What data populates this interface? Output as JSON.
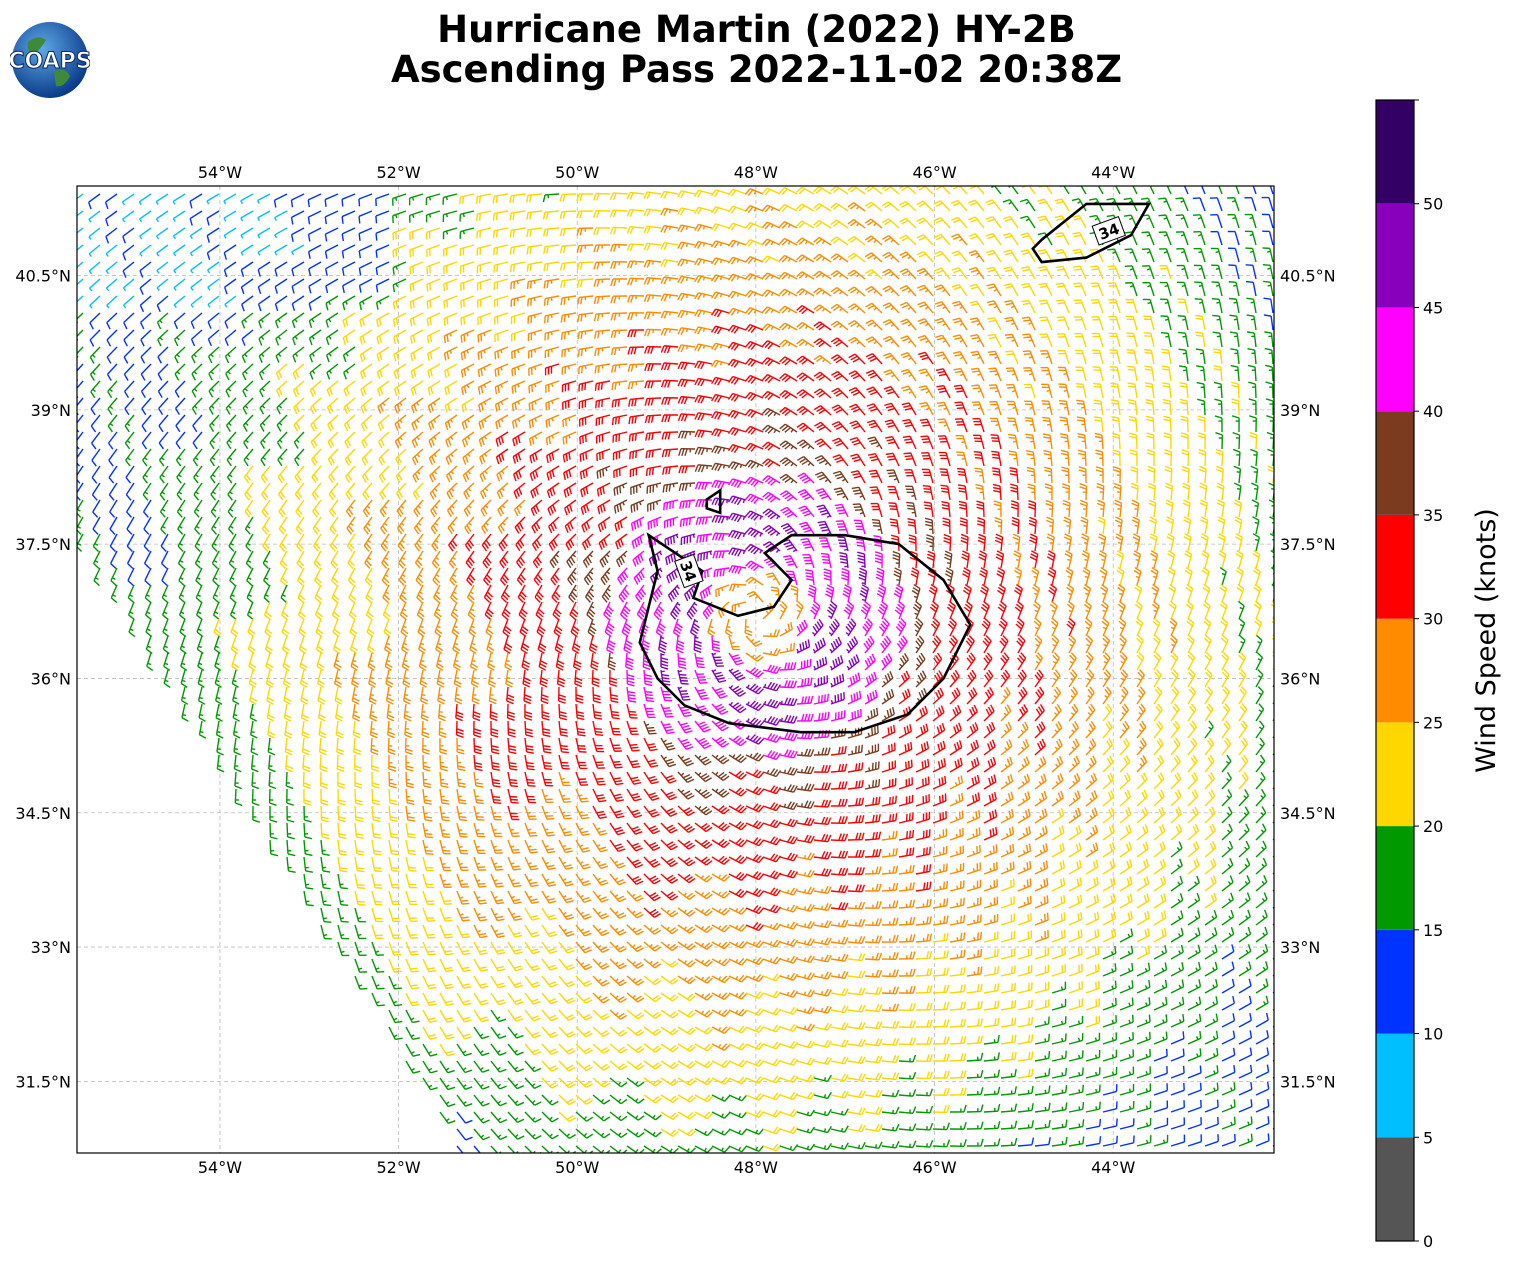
{
  "header": {
    "title_line1": "Hurricane Martin (2022) HY-2B",
    "title_line2": "Ascending Pass 2022-11-02 20:38Z"
  },
  "logo": {
    "text": "COAPS",
    "icon": "globe-logo-icon"
  },
  "map": {
    "lon_range": [
      -55.6,
      -42.2
    ],
    "lat_range": [
      30.7,
      41.5
    ],
    "lon_ticks": [
      {
        "value": -54,
        "label": "54°W"
      },
      {
        "value": -52,
        "label": "52°W"
      },
      {
        "value": -50,
        "label": "50°W"
      },
      {
        "value": -48,
        "label": "48°W"
      },
      {
        "value": -46,
        "label": "46°W"
      },
      {
        "value": -44,
        "label": "44°W"
      }
    ],
    "lat_ticks": [
      {
        "value": 40.5,
        "label": "40.5°N"
      },
      {
        "value": 39,
        "label": "39°N"
      },
      {
        "value": 37.5,
        "label": "37.5°N"
      },
      {
        "value": 36,
        "label": "36°N"
      },
      {
        "value": 34.5,
        "label": "34.5°N"
      },
      {
        "value": 33,
        "label": "33°N"
      },
      {
        "value": 31.5,
        "label": "31.5°N"
      }
    ],
    "gridlines": true,
    "storm_center": {
      "lon": -48.0,
      "lat": 36.7
    },
    "contour_label": "34",
    "contour_34kt_main": [
      [
        -49.2,
        37.6
      ],
      [
        -49.1,
        37.2
      ],
      [
        -49.2,
        36.8
      ],
      [
        -49.3,
        36.4
      ],
      [
        -49.1,
        36.0
      ],
      [
        -48.8,
        35.7
      ],
      [
        -48.3,
        35.5
      ],
      [
        -47.5,
        35.4
      ],
      [
        -46.9,
        35.4
      ],
      [
        -46.3,
        35.6
      ],
      [
        -45.9,
        36.0
      ],
      [
        -45.6,
        36.6
      ],
      [
        -45.9,
        37.1
      ],
      [
        -46.4,
        37.5
      ],
      [
        -47.0,
        37.6
      ],
      [
        -47.6,
        37.6
      ],
      [
        -47.9,
        37.4
      ],
      [
        -47.6,
        37.1
      ],
      [
        -47.8,
        36.8
      ],
      [
        -48.2,
        36.7
      ],
      [
        -48.7,
        36.9
      ],
      [
        -48.6,
        37.2
      ]
    ],
    "contour_34kt_ne": [
      [
        -44.8,
        40.9
      ],
      [
        -44.3,
        41.3
      ],
      [
        -43.6,
        41.3
      ],
      [
        -43.8,
        40.95
      ],
      [
        -44.3,
        40.7
      ],
      [
        -44.8,
        40.65
      ],
      [
        -44.9,
        40.8
      ]
    ],
    "contour_small": [
      [
        -48.55,
        38.0
      ],
      [
        -48.4,
        38.1
      ],
      [
        -48.4,
        37.85
      ],
      [
        -48.55,
        37.9
      ]
    ]
  },
  "colorbar": {
    "label": "Wind Speed (knots)",
    "bins": [
      {
        "min": 0,
        "max": 5,
        "color": "#555555"
      },
      {
        "min": 5,
        "max": 10,
        "color": "#00bfff"
      },
      {
        "min": 10,
        "max": 15,
        "color": "#0033ff"
      },
      {
        "min": 15,
        "max": 20,
        "color": "#009900"
      },
      {
        "min": 20,
        "max": 25,
        "color": "#ffd700"
      },
      {
        "min": 25,
        "max": 30,
        "color": "#ff8c00"
      },
      {
        "min": 30,
        "max": 35,
        "color": "#ff0000"
      },
      {
        "min": 35,
        "max": 40,
        "color": "#7a3b1f"
      },
      {
        "min": 40,
        "max": 45,
        "color": "#ff00ff"
      },
      {
        "min": 45,
        "max": 50,
        "color": "#8800bb"
      },
      {
        "min": 50,
        "max": 55,
        "color": "#330066"
      }
    ],
    "tick_labels": [
      "0",
      "5",
      "10",
      "15",
      "20",
      "25",
      "30",
      "35",
      "40",
      "45",
      "50"
    ]
  }
}
